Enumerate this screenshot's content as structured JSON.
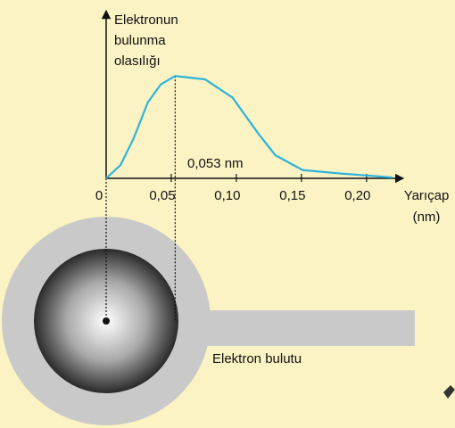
{
  "chart_data": {
    "type": "line",
    "ylabel": [
      "Elektronun",
      "bulunma",
      "olasılığı"
    ],
    "xlabel": [
      "Yarıçap",
      "(nm)"
    ],
    "annotation": "0,053 nm",
    "cloud_label": "Elektron bulutu",
    "x": [
      0,
      0.011,
      0.021,
      0.032,
      0.042,
      0.053,
      0.076,
      0.097,
      0.117,
      0.13,
      0.151,
      0.179,
      0.22
    ],
    "values": [
      0,
      0.08,
      0.24,
      0.46,
      0.57,
      0.62,
      0.6,
      0.49,
      0.27,
      0.14,
      0.05,
      0.03,
      0.005
    ],
    "color": "#2db4d8",
    "xlim": [
      0,
      0.22
    ],
    "ylim": [
      0,
      1
    ],
    "xticks": [
      0,
      {
        "value": 0.05,
        "label": "0,05"
      },
      {
        "value": 0.1,
        "label": "0,10"
      },
      {
        "value": 0.15,
        "label": "0,15"
      },
      {
        "value": 0.2,
        "label": "0,20"
      }
    ]
  }
}
